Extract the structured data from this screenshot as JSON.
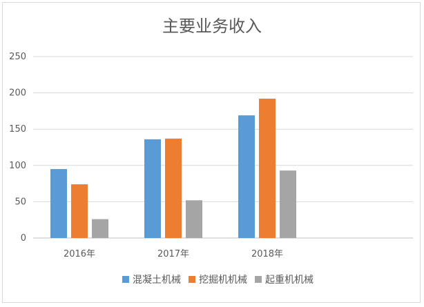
{
  "chart_data": {
    "type": "bar",
    "title": "主要业务收入",
    "categories": [
      "2016年",
      "2017年",
      "2018年"
    ],
    "series": [
      {
        "name": "混凝土机械",
        "values": [
          95,
          136,
          169
        ],
        "color": "#5b9bd5"
      },
      {
        "name": "挖掘机机械",
        "values": [
          74,
          137,
          192
        ],
        "color": "#ed7d31"
      },
      {
        "name": "起重机机械",
        "values": [
          26,
          52,
          93
        ],
        "color": "#a5a5a5"
      }
    ],
    "y_ticks": [
      "0",
      "50",
      "100",
      "150",
      "200",
      "250"
    ],
    "ylim": [
      0,
      250
    ],
    "xlabel": "",
    "ylabel": "",
    "grid": true,
    "legend_position": "bottom"
  }
}
